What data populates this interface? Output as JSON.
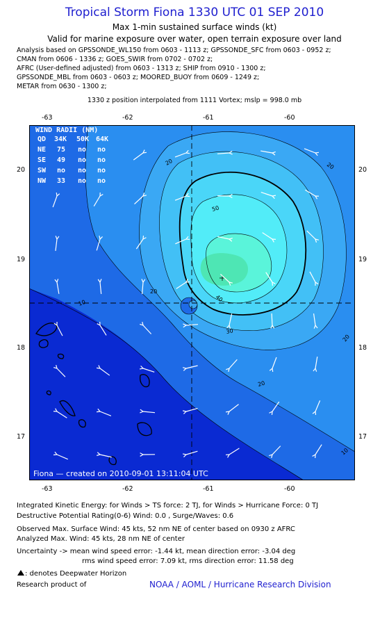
{
  "header": {
    "title": "Tropical Storm Fiona 1330 UTC 01 SEP 2010",
    "subtitle": "Max 1-min sustained surface winds (kt)",
    "validity": "Valid for marine exposure over water, open terrain exposure over land",
    "analysis_lines": [
      "Analysis based on GPSSONDE_WL150 from 0603 - 1113 z; GPSSONDE_SFC from 0603 - 0952 z;",
      "CMAN from 0606 - 1336 z; GOES_SWIR from 0702 - 0702 z;",
      "AFRC (User-defined adjusted) from 0603 - 1313 z; SHIP from 0910 - 1300 z;",
      "GPSSONDE_MBL from 0603 - 0603 z; MOORED_BUOY from 0609 - 1249 z;",
      "METAR from 0630 - 1300 z;"
    ],
    "position_line": "1330 z position interpolated from 1111 Vortex; mslp = 998.0 mb"
  },
  "map": {
    "lon_labels": [
      "-63",
      "-62",
      "-61",
      "-60"
    ],
    "lat_labels": [
      "20",
      "19",
      "18",
      "17"
    ],
    "wind_radii": {
      "title": "WIND RADII (NM)",
      "header": [
        "QD",
        "34K",
        "50K",
        "64K"
      ],
      "rows": [
        [
          "NE",
          "75",
          "no",
          "no"
        ],
        [
          "SE",
          "49",
          "no",
          "no"
        ],
        [
          "SW",
          "no",
          "no",
          "no"
        ],
        [
          "NW",
          "33",
          "no",
          "no"
        ]
      ]
    },
    "contour_labels": [
      "10",
      "20",
      "20",
      "20",
      "20",
      "30",
      "40",
      "10",
      "20",
      "50"
    ],
    "credit": "Fiona — created on 2010-09-01 13:11:04 UTC",
    "colors": {
      "band_0_10": "#0a2ad2",
      "band_10_20": "#1e6ae6",
      "band_20_25": "#2a8ef0",
      "band_25_30": "#3aa8f4",
      "band_30_35": "#42c0f6",
      "band_35_40": "#4ad6f8",
      "band_40_45": "#52ecf8",
      "band_45_50": "#5af4da",
      "band_core": "#4ee6b4"
    }
  },
  "footer": {
    "ike": "Integrated Kinetic Energy:  for Winds > TS force: 2 TJ,  for Winds > Hurricane Force: 0 TJ",
    "destructive": "Destructive Potential Rating(0-6)   Wind: 0.0 , Surge/Waves: 0.6",
    "observed": "Observed Max. Surface Wind: 45 kts, 52 nm NE of center based on 0930 z AFRC",
    "analyzed": "Analyzed Max. Wind: 45 kts, 28 nm NE of center",
    "uncertainty1": "Uncertainty -> mean wind speed error:  -1.44 kt,   mean direction error:  -3.04 deg",
    "uncertainty2": "rms wind speed error: 7.09 kt,   rms direction error: 11.58 deg",
    "deepwater": ": denotes Deepwater Horizon",
    "research": "Research product of",
    "noaa": "NOAA / AOML / Hurricane Research Division"
  }
}
